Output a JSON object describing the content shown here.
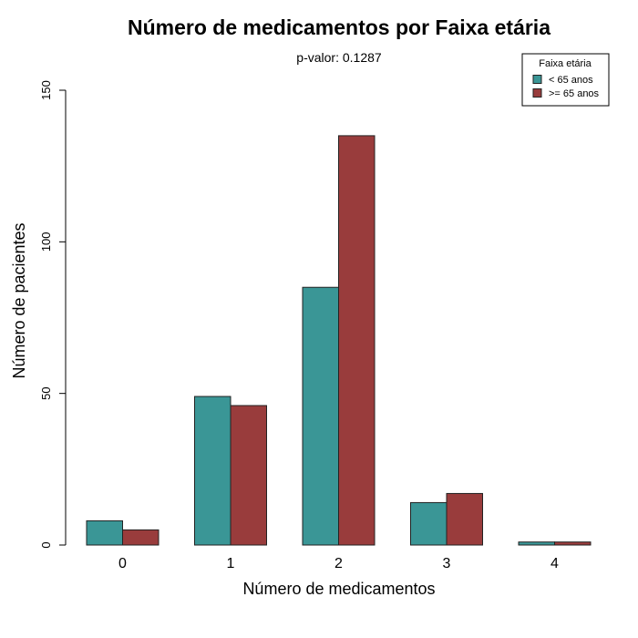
{
  "chart_data": {
    "type": "bar",
    "title": "Número de medicamentos por Faixa etária",
    "subtitle": "p-valor: 0.1287",
    "xlabel": "Número de medicamentos",
    "ylabel": "Número de pacientes",
    "categories": [
      "0",
      "1",
      "2",
      "3",
      "4"
    ],
    "ylim": [
      0,
      150
    ],
    "yticks": [
      0,
      50,
      100,
      150
    ],
    "grid": false,
    "legend": {
      "title": "Faixa etária",
      "placement": "top-right"
    },
    "series": [
      {
        "name": "< 65 anos",
        "color": "#3a9696",
        "values": [
          8,
          49,
          85,
          14,
          1
        ]
      },
      {
        "name": ">= 65 anos",
        "color": "#993c3c",
        "values": [
          5,
          46,
          135,
          17,
          1
        ]
      }
    ]
  }
}
